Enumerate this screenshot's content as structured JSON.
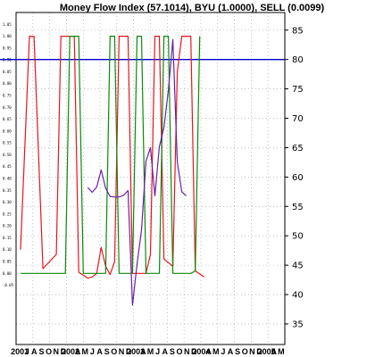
{
  "chart_data": {
    "type": "line",
    "title": "Money Flow Index (57.1014), BYU (1.0000), SELL (0.0099)",
    "x_start": "2001-06",
    "x_end": "2006-06",
    "x_tick_labels": [
      "2001",
      "J",
      "A",
      "S",
      "O",
      "N",
      "D",
      "2002",
      "A",
      "M",
      "J",
      "A",
      "S",
      "O",
      "N",
      "D",
      "2003",
      "A",
      "M",
      "J",
      "A",
      "S",
      "O",
      "N",
      "D",
      "2004",
      "A",
      "M",
      "J",
      "A",
      "S",
      "O",
      "N",
      "D",
      "2005",
      "A",
      "M"
    ],
    "right_axis": {
      "ylim": [
        31.5,
        88
      ],
      "ticks": [
        35,
        40,
        45,
        50,
        55,
        60,
        65,
        70,
        75,
        80,
        85
      ]
    },
    "left_axis": {
      "ylim": [
        -0.3,
        1.1
      ],
      "ticks": [
        "-0.05",
        "0.00",
        "0.05",
        "0.10",
        "0.15",
        "0.20",
        "0.25",
        "0.30",
        "0.35",
        "0.40",
        "0.45",
        "0.50",
        "0.55",
        "0.60",
        "0.65",
        "0.70",
        "0.75",
        "0.80",
        "0.85",
        "0.90",
        "0.95",
        "1.00",
        "1.05"
      ]
    },
    "reference_line": {
      "axis": "right",
      "value": 80,
      "color": "#0000cc"
    },
    "series": [
      {
        "name": "SELL",
        "axis": "left",
        "color": "#e8141e",
        "points": [
          [
            "2001-07",
            0.1
          ],
          [
            "2001-09",
            1.0
          ],
          [
            "2001-10",
            1.0
          ],
          [
            "2001-12",
            0.02
          ],
          [
            "2002-03",
            0.08
          ],
          [
            "2002-04",
            1.0
          ],
          [
            "2002-07",
            1.0
          ],
          [
            "2002-08",
            0.005
          ],
          [
            "2002-10",
            -0.02
          ],
          [
            "2002-11",
            -0.015
          ],
          [
            "2002-12",
            0.0
          ],
          [
            "2003-01",
            0.11
          ],
          [
            "2003-02",
            0.03
          ],
          [
            "2003-03",
            -0.005
          ],
          [
            "2003-04",
            0.05
          ],
          [
            "2003-05",
            1.0
          ],
          [
            "2003-07",
            1.0
          ],
          [
            "2003-08",
            0.0
          ],
          [
            "2003-11",
            0.0
          ],
          [
            "2003-12",
            0.08
          ],
          [
            "2004-01",
            1.0
          ],
          [
            "2004-02",
            1.0
          ],
          [
            "2004-03",
            0.06
          ],
          [
            "2004-05",
            0.03
          ],
          [
            "2004-06",
            0.85
          ],
          [
            "2004-07",
            1.0
          ],
          [
            "2004-09",
            1.0
          ],
          [
            "2004-10",
            0.01
          ],
          [
            "2004-12",
            -0.015
          ]
        ]
      },
      {
        "name": "BYU",
        "axis": "left",
        "color": "#0a8a0a",
        "points": [
          [
            "2001-07",
            0.0
          ],
          [
            "2002-03",
            0.0
          ],
          [
            "2002-05",
            0.0
          ],
          [
            "2002-06",
            1.0
          ],
          [
            "2002-08",
            1.0
          ],
          [
            "2002-09",
            0.0
          ],
          [
            "2003-02",
            0.0
          ],
          [
            "2003-03",
            1.0
          ],
          [
            "2003-04",
            1.0
          ],
          [
            "2003-05",
            0.0
          ],
          [
            "2003-08",
            0.0
          ],
          [
            "2003-09",
            1.0
          ],
          [
            "2003-10",
            1.0
          ],
          [
            "2003-11",
            0.0
          ],
          [
            "2004-02",
            0.0
          ],
          [
            "2004-03",
            1.0
          ],
          [
            "2004-04",
            1.0
          ],
          [
            "2004-05",
            0.0
          ],
          [
            "2004-06",
            0.0
          ],
          [
            "2004-07",
            0.0
          ],
          [
            "2004-08",
            0.0
          ],
          [
            "2004-09",
            0.0
          ],
          [
            "2004-10",
            0.01
          ],
          [
            "2004-11",
            1.0
          ]
        ]
      },
      {
        "name": "Money Flow Index",
        "axis": "right",
        "color": "#6b1fa8",
        "points": [
          [
            "2002-10",
            58.2
          ],
          [
            "2002-11",
            57.4
          ],
          [
            "2002-12",
            58.3
          ],
          [
            "2003-01",
            61.2
          ],
          [
            "2003-02",
            58.1
          ],
          [
            "2003-03",
            56.7
          ],
          [
            "2003-04",
            56.6
          ],
          [
            "2003-05",
            56.6
          ],
          [
            "2003-06",
            56.9
          ],
          [
            "2003-07",
            57.7
          ],
          [
            "2003-08",
            38.2
          ],
          [
            "2003-09",
            45.2
          ],
          [
            "2003-10",
            51.0
          ],
          [
            "2003-11",
            62.7
          ],
          [
            "2003-12",
            65.0
          ],
          [
            "2004-01",
            56.8
          ],
          [
            "2004-02",
            65.2
          ],
          [
            "2004-03",
            68.4
          ],
          [
            "2004-04",
            74.8
          ],
          [
            "2004-05",
            83.4
          ],
          [
            "2004-06",
            62.5
          ],
          [
            "2004-07",
            57.5
          ],
          [
            "2004-08",
            56.8
          ]
        ]
      }
    ]
  }
}
